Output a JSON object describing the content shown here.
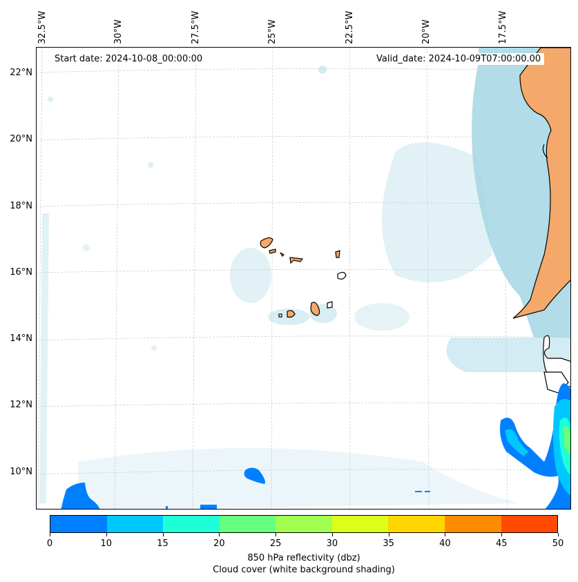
{
  "header": {
    "start_date": "Start date: 2024-10-08_00:00:00",
    "valid_date": "Valid_date: 2024-10-09T07:00:00.00"
  },
  "axes": {
    "lon_labels": [
      "32.5°W",
      "30°W",
      "27.5°W",
      "25°W",
      "22.5°W",
      "20°W",
      "17.5°W"
    ],
    "lat_labels": [
      "22°N",
      "20°N",
      "18°N",
      "16°N",
      "14°N",
      "12°N",
      "10°N"
    ]
  },
  "colorbar": {
    "ticks": [
      "0",
      "10",
      "15",
      "20",
      "25",
      "30",
      "35",
      "40",
      "45",
      "50"
    ],
    "colors": [
      "#0080ff",
      "#00c8ff",
      "#1effd8",
      "#66ff80",
      "#a0ff50",
      "#dcff1a",
      "#ffd600",
      "#ff8c00",
      "#ff4a00"
    ],
    "title": "850 hPa reflectivity (dbz)",
    "subtitle": "Cloud cover (white background shading)"
  },
  "colors": {
    "land": "#f4a86a",
    "cloud": "#a8d8e6",
    "grid": "#bbbbbb"
  }
}
